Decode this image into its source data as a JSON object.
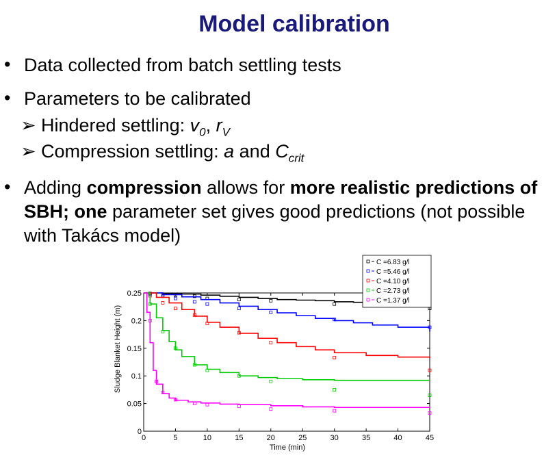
{
  "title": "Model calibration",
  "bullets": {
    "b1": "Data collected from batch settling tests",
    "b2": "Parameters to be calibrated",
    "sub1": {
      "prefix": "Hindered settling: ",
      "p1": "v",
      "p1_sub": "0",
      "sep": ", ",
      "p2": "r",
      "p2_sub": "V"
    },
    "sub2": {
      "prefix": "Compression settling: ",
      "p1": "a",
      "mid": " and ",
      "p2": "C",
      "p2_sub": "crit"
    },
    "b3": {
      "t1": "Adding ",
      "t2": "compression",
      "t3": " allows for ",
      "t4": "more realistic predictions of SBH; one",
      "t5": " parameter set gives good predictions  (not possible with Takács model)"
    }
  },
  "chart_data": {
    "type": "line",
    "xlabel": "Time (min)",
    "ylabel": "Sludge Blanket Height (m)",
    "xlim": [
      0,
      45
    ],
    "ylim": [
      0,
      0.25
    ],
    "x_ticks": [
      "0",
      "5",
      "10",
      "15",
      "20",
      "25",
      "30",
      "35",
      "40",
      "45"
    ],
    "y_ticks": [
      "0",
      "0.05",
      "0.1",
      "0.15",
      "0.2",
      "0.25"
    ],
    "legend_position": "top-right",
    "series": [
      {
        "name": "C =6.83 g/l",
        "color": "#000000",
        "model": [
          [
            0,
            0.25
          ],
          [
            3,
            0.249
          ],
          [
            6,
            0.248
          ],
          [
            9,
            0.246
          ],
          [
            12,
            0.244
          ],
          [
            15,
            0.242
          ],
          [
            18,
            0.24
          ],
          [
            21,
            0.238
          ],
          [
            24,
            0.237
          ],
          [
            27,
            0.236
          ],
          [
            30,
            0.234
          ],
          [
            33,
            0.233
          ],
          [
            36,
            0.232
          ],
          [
            39,
            0.231
          ],
          [
            42,
            0.23
          ],
          [
            45,
            0.229
          ]
        ],
        "measured": [
          [
            1,
            0.249
          ],
          [
            3,
            0.247
          ],
          [
            5,
            0.246
          ],
          [
            8,
            0.244
          ],
          [
            10,
            0.24
          ],
          [
            15,
            0.238
          ],
          [
            20,
            0.236
          ],
          [
            30,
            0.23
          ],
          [
            45,
            0.222
          ]
        ]
      },
      {
        "name": "C =5.46 g/l",
        "color": "#0000ff",
        "model": [
          [
            0,
            0.25
          ],
          [
            3,
            0.247
          ],
          [
            6,
            0.243
          ],
          [
            9,
            0.238
          ],
          [
            12,
            0.232
          ],
          [
            15,
            0.226
          ],
          [
            18,
            0.22
          ],
          [
            21,
            0.214
          ],
          [
            24,
            0.209
          ],
          [
            27,
            0.204
          ],
          [
            30,
            0.2
          ],
          [
            33,
            0.196
          ],
          [
            36,
            0.192
          ],
          [
            40,
            0.188
          ],
          [
            45,
            0.18
          ]
        ],
        "measured": [
          [
            1,
            0.248
          ],
          [
            3,
            0.244
          ],
          [
            5,
            0.24
          ],
          [
            8,
            0.234
          ],
          [
            10,
            0.23
          ],
          [
            15,
            0.222
          ],
          [
            20,
            0.215
          ],
          [
            30,
            0.202
          ],
          [
            45,
            0.188
          ]
        ]
      },
      {
        "name": "C =4.10 g/l",
        "color": "#ff0000",
        "model": [
          [
            0,
            0.25
          ],
          [
            2,
            0.242
          ],
          [
            4,
            0.232
          ],
          [
            6,
            0.22
          ],
          [
            8,
            0.208
          ],
          [
            10,
            0.197
          ],
          [
            12,
            0.188
          ],
          [
            15,
            0.177
          ],
          [
            18,
            0.168
          ],
          [
            21,
            0.16
          ],
          [
            24,
            0.153
          ],
          [
            27,
            0.147
          ],
          [
            30,
            0.142
          ],
          [
            35,
            0.137
          ],
          [
            40,
            0.134
          ],
          [
            45,
            0.132
          ]
        ],
        "measured": [
          [
            1,
            0.245
          ],
          [
            3,
            0.232
          ],
          [
            5,
            0.222
          ],
          [
            8,
            0.21
          ],
          [
            10,
            0.195
          ],
          [
            15,
            0.178
          ],
          [
            20,
            0.16
          ],
          [
            30,
            0.133
          ],
          [
            45,
            0.11
          ]
        ]
      },
      {
        "name": "C =2.73 g/l",
        "color": "#00cc00",
        "model": [
          [
            0,
            0.25
          ],
          [
            1,
            0.23
          ],
          [
            2,
            0.205
          ],
          [
            3,
            0.182
          ],
          [
            4,
            0.162
          ],
          [
            5,
            0.147
          ],
          [
            6,
            0.135
          ],
          [
            8,
            0.12
          ],
          [
            10,
            0.112
          ],
          [
            12,
            0.106
          ],
          [
            15,
            0.1
          ],
          [
            18,
            0.097
          ],
          [
            21,
            0.095
          ],
          [
            25,
            0.093
          ],
          [
            30,
            0.092
          ],
          [
            45,
            0.092
          ]
        ],
        "measured": [
          [
            1,
            0.23
          ],
          [
            3,
            0.18
          ],
          [
            5,
            0.15
          ],
          [
            8,
            0.12
          ],
          [
            10,
            0.11
          ],
          [
            15,
            0.1
          ],
          [
            20,
            0.09
          ],
          [
            30,
            0.075
          ],
          [
            45,
            0.065
          ]
        ]
      },
      {
        "name": "C =1.37 g/l",
        "color": "#ff00ff",
        "model": [
          [
            0,
            0.25
          ],
          [
            0.5,
            0.215
          ],
          [
            1,
            0.16
          ],
          [
            1.5,
            0.11
          ],
          [
            2,
            0.085
          ],
          [
            3,
            0.068
          ],
          [
            4,
            0.06
          ],
          [
            5,
            0.056
          ],
          [
            7,
            0.053
          ],
          [
            9,
            0.051
          ],
          [
            12,
            0.049
          ],
          [
            15,
            0.048
          ],
          [
            20,
            0.046
          ],
          [
            25,
            0.044
          ],
          [
            30,
            0.043
          ],
          [
            45,
            0.042
          ]
        ],
        "measured": [
          [
            1,
            0.2
          ],
          [
            2,
            0.09
          ],
          [
            3,
            0.07
          ],
          [
            5,
            0.057
          ],
          [
            8,
            0.05
          ],
          [
            10,
            0.048
          ],
          [
            15,
            0.045
          ],
          [
            20,
            0.04
          ],
          [
            30,
            0.037
          ],
          [
            45,
            0.033
          ]
        ]
      }
    ]
  }
}
